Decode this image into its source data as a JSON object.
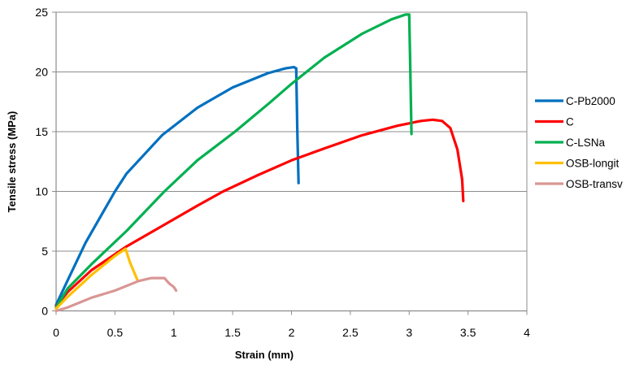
{
  "chart_data": {
    "type": "line",
    "title": "",
    "xlabel": "Strain (mm)",
    "ylabel": "Tensile stress (MPa)",
    "xlim": [
      0,
      4
    ],
    "ylim": [
      0,
      25
    ],
    "xticks": [
      "0",
      "0.5",
      "1",
      "1.5",
      "2",
      "2.5",
      "3",
      "3.5",
      "4"
    ],
    "yticks": [
      "0",
      "5",
      "10",
      "15",
      "20",
      "25"
    ],
    "grid": {
      "horizontal": true,
      "vertical": false
    },
    "legend_position": "right",
    "series": [
      {
        "name": "C-Pb2000",
        "color": "#0070C0",
        "x": [
          0.0,
          0.1,
          0.25,
          0.5,
          0.6,
          0.9,
          1.2,
          1.5,
          1.8,
          1.95,
          2.02,
          2.04,
          2.05,
          2.06
        ],
        "y": [
          0.5,
          2.6,
          5.7,
          10.0,
          11.5,
          14.7,
          17.0,
          18.7,
          19.9,
          20.3,
          20.4,
          20.3,
          15.0,
          10.7
        ]
      },
      {
        "name": "C",
        "color": "#FF0000",
        "x": [
          0.0,
          0.1,
          0.3,
          0.6,
          0.9,
          1.2,
          1.42,
          1.7,
          2.0,
          2.28,
          2.6,
          2.9,
          3.1,
          3.2,
          3.28,
          3.35,
          3.41,
          3.45,
          3.46
        ],
        "y": [
          0.4,
          1.6,
          3.4,
          5.4,
          7.1,
          8.8,
          10.0,
          11.3,
          12.6,
          13.6,
          14.7,
          15.5,
          15.9,
          16.0,
          15.9,
          15.3,
          13.5,
          11.0,
          9.2
        ]
      },
      {
        "name": "C-LSNa",
        "color": "#00B050",
        "x": [
          0.0,
          0.1,
          0.3,
          0.6,
          0.92,
          1.2,
          1.52,
          1.8,
          2.0,
          2.28,
          2.6,
          2.85,
          2.97,
          3.0,
          3.01,
          3.02
        ],
        "y": [
          0.3,
          1.9,
          3.9,
          6.7,
          10.0,
          12.6,
          15.0,
          17.3,
          19.0,
          21.2,
          23.2,
          24.4,
          24.8,
          24.8,
          20.0,
          14.8
        ]
      },
      {
        "name": "OSB-longit",
        "color": "#FFC000",
        "x": [
          0.0,
          0.1,
          0.3,
          0.5,
          0.59,
          0.63,
          0.69
        ],
        "y": [
          0.2,
          1.2,
          3.0,
          4.6,
          5.2,
          4.0,
          2.6
        ]
      },
      {
        "name": "OSB-transv",
        "color": "#D99694",
        "x": [
          0.0,
          0.1,
          0.3,
          0.5,
          0.7,
          0.81,
          0.92,
          0.96,
          1.0,
          1.02
        ],
        "y": [
          0.0,
          0.3,
          1.1,
          1.7,
          2.5,
          2.75,
          2.75,
          2.3,
          2.0,
          1.7
        ]
      }
    ]
  }
}
